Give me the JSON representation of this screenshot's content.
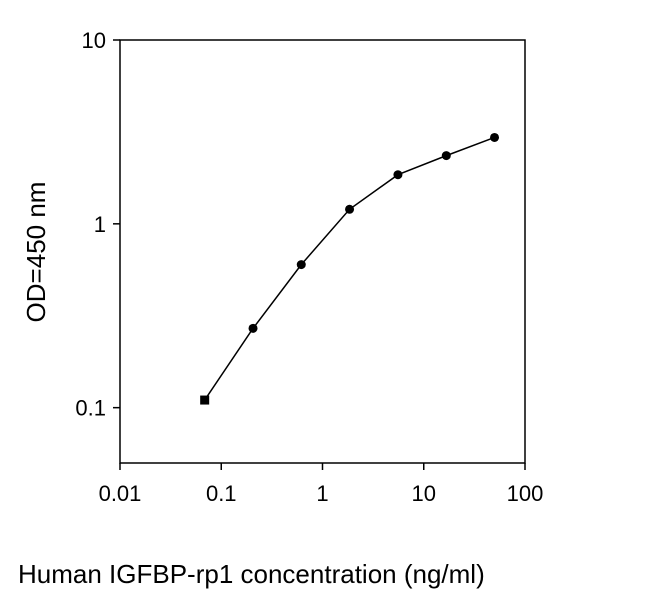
{
  "chart_data": {
    "type": "line",
    "title": "",
    "xlabel": "Human IGFBP-rp1 concentration (ng/ml)",
    "ylabel": "OD=450 nm",
    "x_scale": "log",
    "y_scale": "log",
    "xlim": [
      0.01,
      100
    ],
    "ylim": [
      0.05,
      10
    ],
    "x_ticks": [
      {
        "value": 0.01,
        "label": "0.01"
      },
      {
        "value": 0.1,
        "label": "0.1"
      },
      {
        "value": 1,
        "label": "1"
      },
      {
        "value": 10,
        "label": "10"
      },
      {
        "value": 100,
        "label": "100"
      }
    ],
    "y_ticks": [
      {
        "value": 0.1,
        "label": "0.1"
      },
      {
        "value": 1,
        "label": "1"
      },
      {
        "value": 10,
        "label": "10"
      }
    ],
    "grid": false,
    "legend": "none",
    "series": [
      {
        "color": "#000000",
        "x": [
          0.0686,
          0.206,
          0.617,
          1.85,
          5.56,
          16.7,
          50
        ],
        "y": [
          0.11,
          0.27,
          0.6,
          1.2,
          1.85,
          2.35,
          2.95
        ]
      }
    ]
  }
}
